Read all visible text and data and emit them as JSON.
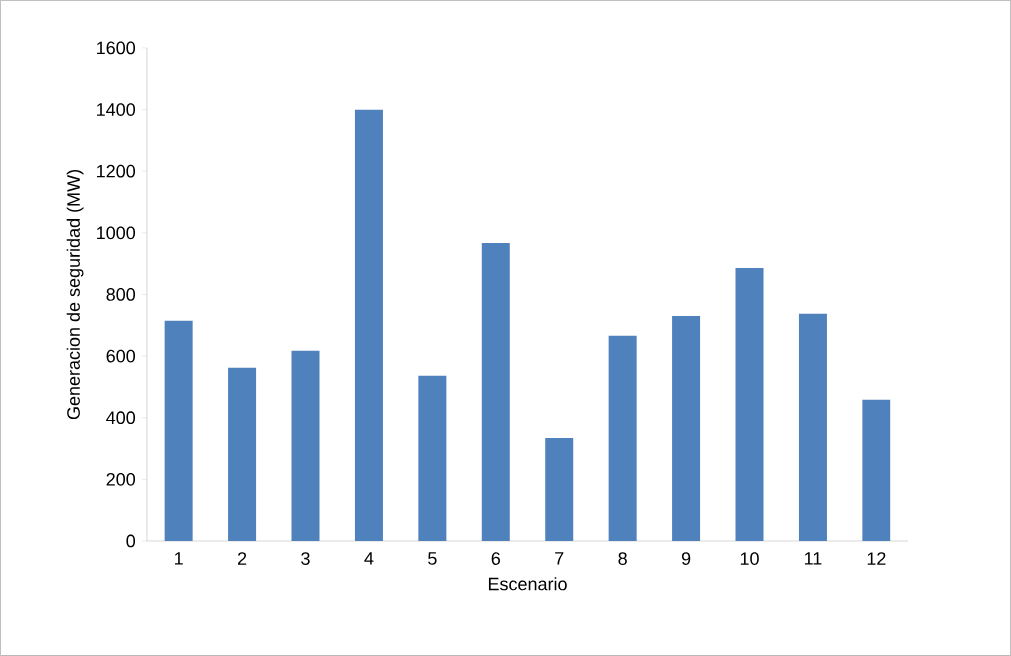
{
  "chart_data": {
    "type": "bar",
    "xlabel": "Escenario",
    "ylabel": "Generacion de seguridad (MW)",
    "categories": [
      "1",
      "2",
      "3",
      "4",
      "5",
      "6",
      "7",
      "8",
      "9",
      "10",
      "11",
      "12"
    ],
    "values": [
      715,
      562,
      617,
      1400,
      536,
      967,
      334,
      666,
      730,
      886,
      737,
      458
    ],
    "color": "#4f81bd",
    "ylim": [
      0,
      1600
    ],
    "yticks": [
      0,
      200,
      400,
      600,
      800,
      1000,
      1200,
      1400,
      1600
    ]
  }
}
